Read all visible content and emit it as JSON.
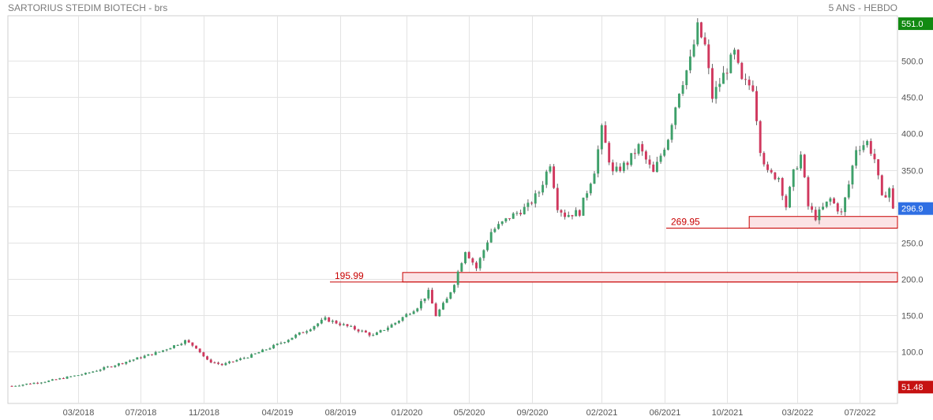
{
  "header": {
    "title": "SARTORIUS STEDIM BIOTECH - brs",
    "period": "5 ANS - HEBDO"
  },
  "colors": {
    "up": "#3ea06a",
    "down": "#d0385e",
    "grid": "#e3e3e3",
    "high_badge": "#128a12",
    "low_badge": "#c61212",
    "last_badge": "#2f6fe3",
    "level": "#c80000",
    "zone_fill": "#fbe3e5"
  },
  "chart_data": {
    "type": "candlestick",
    "title": "SARTORIUS STEDIM BIOTECH - brs",
    "period": "5 ANS - HEBDO",
    "ylim": [
      40,
      570
    ],
    "y_ticks": [
      {
        "value": 100,
        "label": "100.0"
      },
      {
        "value": 150,
        "label": "150.0"
      },
      {
        "value": 200,
        "label": "200.0"
      },
      {
        "value": 250,
        "label": "250.0"
      },
      {
        "value": 300,
        "label": "300.0"
      },
      {
        "value": 350,
        "label": "350.0"
      },
      {
        "value": 400,
        "label": "400.0"
      },
      {
        "value": 450,
        "label": "450.0"
      },
      {
        "value": 500,
        "label": "500.0"
      }
    ],
    "x_ticks": [
      "03/2018",
      "07/2018",
      "11/2018",
      "04/2019",
      "08/2019",
      "01/2020",
      "05/2020",
      "09/2020",
      "02/2021",
      "06/2021",
      "10/2021",
      "03/2022",
      "07/2022"
    ],
    "x_tick_weeks": [
      18,
      35,
      52,
      72,
      89,
      107,
      124,
      141,
      160,
      177,
      194,
      213,
      230
    ],
    "total_weeks": 240,
    "badges": {
      "high": "551.0",
      "last": "296.9",
      "low": "51.48"
    },
    "levels": [
      {
        "value": 195.99,
        "label": "195.99",
        "zone_top": 209,
        "zone_start_week": 106
      },
      {
        "value": 269.95,
        "label": "269.95",
        "zone_top": 286,
        "zone_start_week": 200
      }
    ],
    "price_path": [
      [
        0,
        53
      ],
      [
        10,
        60
      ],
      [
        20,
        70
      ],
      [
        30,
        85
      ],
      [
        40,
        100
      ],
      [
        47,
        115
      ],
      [
        50,
        106
      ],
      [
        53,
        88
      ],
      [
        57,
        82
      ],
      [
        65,
        95
      ],
      [
        72,
        110
      ],
      [
        80,
        130
      ],
      [
        85,
        145
      ],
      [
        88,
        140
      ],
      [
        95,
        128
      ],
      [
        98,
        122
      ],
      [
        104,
        140
      ],
      [
        110,
        162
      ],
      [
        113,
        182
      ],
      [
        115,
        150
      ],
      [
        118,
        172
      ],
      [
        120,
        195
      ],
      [
        123,
        240
      ],
      [
        126,
        215
      ],
      [
        130,
        265
      ],
      [
        135,
        285
      ],
      [
        140,
        300
      ],
      [
        143,
        320
      ],
      [
        146,
        360
      ],
      [
        148,
        300
      ],
      [
        150,
        288
      ],
      [
        154,
        292
      ],
      [
        158,
        350
      ],
      [
        160,
        405
      ],
      [
        163,
        345
      ],
      [
        167,
        360
      ],
      [
        170,
        382
      ],
      [
        174,
        345
      ],
      [
        178,
        395
      ],
      [
        181,
        460
      ],
      [
        184,
        500
      ],
      [
        186,
        545
      ],
      [
        188,
        520
      ],
      [
        190,
        450
      ],
      [
        193,
        480
      ],
      [
        196,
        510
      ],
      [
        198,
        470
      ],
      [
        201,
        465
      ],
      [
        203,
        380
      ],
      [
        205,
        345
      ],
      [
        208,
        340
      ],
      [
        210,
        300
      ],
      [
        212,
        345
      ],
      [
        214,
        370
      ],
      [
        216,
        300
      ],
      [
        218,
        285
      ],
      [
        222,
        310
      ],
      [
        225,
        290
      ],
      [
        227,
        330
      ],
      [
        229,
        380
      ],
      [
        232,
        388
      ],
      [
        234,
        365
      ],
      [
        236,
        310
      ],
      [
        238,
        325
      ],
      [
        239,
        296.9
      ]
    ]
  }
}
